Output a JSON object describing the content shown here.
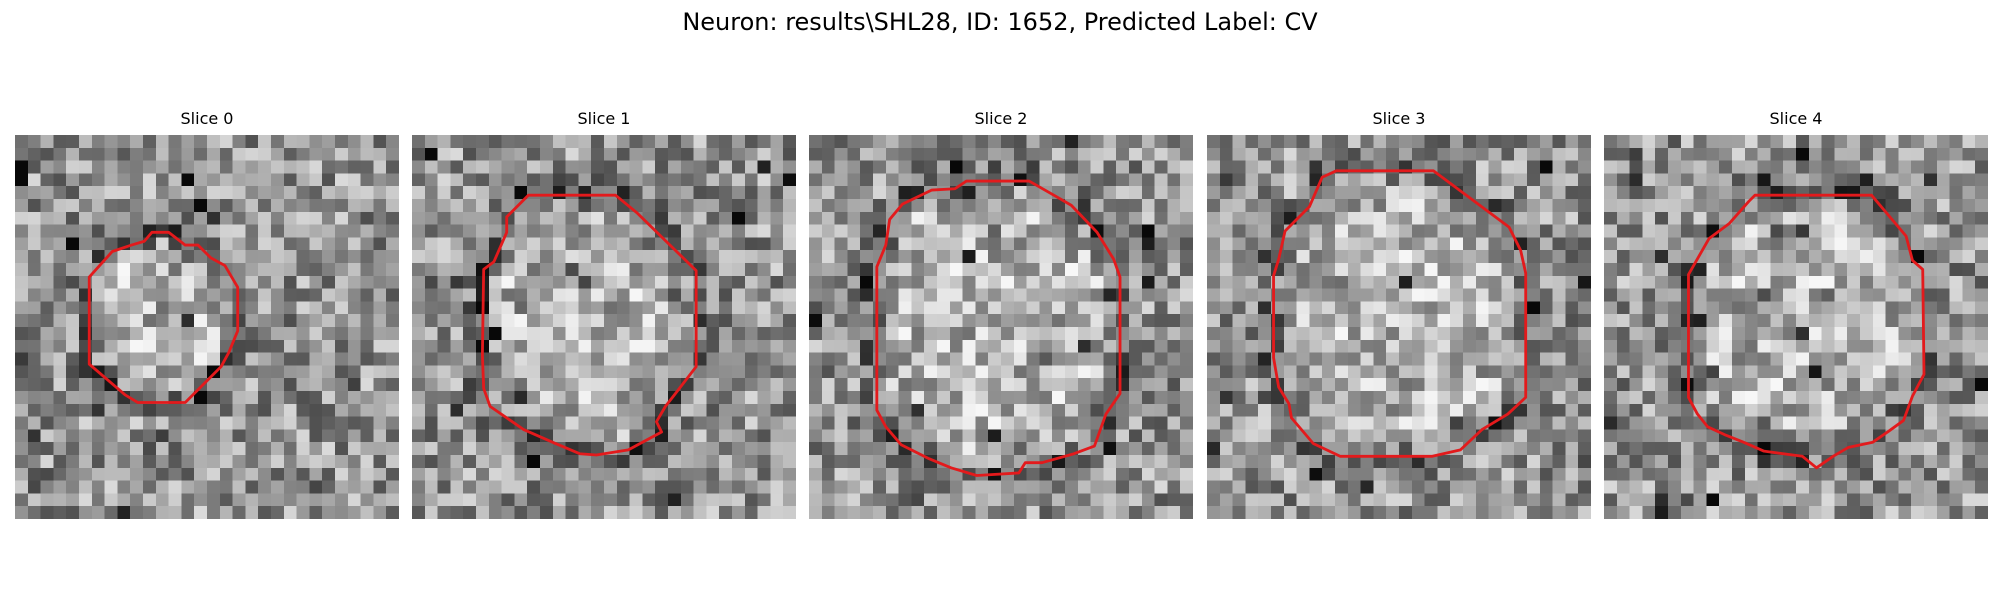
{
  "title": "Neuron: results\\SHL28, ID: 1652, Predicted Label: CV",
  "colors": {
    "contour": "#e31a1c",
    "background": "#ffffff"
  },
  "image_style": "grayscale-noise-patch",
  "grid_resolution": 30,
  "slices": [
    {
      "label": "Slice 0",
      "seed": 11,
      "contour": [
        [
          10.7,
          7.6
        ],
        [
          12.0,
          7.6
        ],
        [
          13.3,
          8.6
        ],
        [
          14.3,
          8.6
        ],
        [
          15.3,
          9.6
        ],
        [
          16.4,
          10.2
        ],
        [
          17.4,
          11.9
        ],
        [
          17.4,
          15.3
        ],
        [
          16.7,
          17.0
        ],
        [
          16.1,
          18.1
        ],
        [
          15.0,
          19.2
        ],
        [
          13.3,
          20.9
        ],
        [
          9.6,
          20.9
        ],
        [
          8.6,
          20.3
        ],
        [
          5.8,
          17.9
        ],
        [
          5.8,
          11.1
        ],
        [
          7.6,
          9.1
        ],
        [
          9.1,
          8.6
        ],
        [
          10.1,
          8.3
        ]
      ]
    },
    {
      "label": "Slice 1",
      "seed": 23,
      "contour": [
        [
          9.1,
          4.7
        ],
        [
          15.9,
          4.7
        ],
        [
          17.6,
          6.1
        ],
        [
          22.2,
          10.6
        ],
        [
          22.2,
          18.1
        ],
        [
          20.5,
          20.3
        ],
        [
          19.8,
          21.2
        ],
        [
          19.1,
          22.4
        ],
        [
          19.5,
          23.2
        ],
        [
          16.9,
          24.6
        ],
        [
          14.4,
          25.0
        ],
        [
          13.1,
          24.9
        ],
        [
          11.2,
          24.1
        ],
        [
          8.7,
          23.0
        ],
        [
          6.1,
          21.2
        ],
        [
          5.6,
          19.8
        ],
        [
          5.5,
          17.2
        ],
        [
          5.6,
          10.5
        ],
        [
          6.4,
          9.9
        ],
        [
          7.4,
          7.6
        ],
        [
          7.4,
          6.4
        ]
      ]
    },
    {
      "label": "Slice 2",
      "seed": 37,
      "contour": [
        [
          12.3,
          3.6
        ],
        [
          17.2,
          3.6
        ],
        [
          19.3,
          4.8
        ],
        [
          20.5,
          5.5
        ],
        [
          22.5,
          7.6
        ],
        [
          23.8,
          9.7
        ],
        [
          24.3,
          11.1
        ],
        [
          24.3,
          20.2
        ],
        [
          23.2,
          21.8
        ],
        [
          22.3,
          24.3
        ],
        [
          20.7,
          24.9
        ],
        [
          18.2,
          25.6
        ],
        [
          16.9,
          25.6
        ],
        [
          16.4,
          26.4
        ],
        [
          13.1,
          26.6
        ],
        [
          11.1,
          26.0
        ],
        [
          9.4,
          25.3
        ],
        [
          7.2,
          24.2
        ],
        [
          6.0,
          22.8
        ],
        [
          5.3,
          21.5
        ],
        [
          5.3,
          10.3
        ],
        [
          6.0,
          8.6
        ],
        [
          6.3,
          6.6
        ],
        [
          7.3,
          5.4
        ],
        [
          9.6,
          4.3
        ],
        [
          11.4,
          4.2
        ]
      ]
    },
    {
      "label": "Slice 3",
      "seed": 53,
      "contour": [
        [
          10.1,
          2.8
        ],
        [
          17.7,
          2.8
        ],
        [
          23.6,
          7.2
        ],
        [
          24.5,
          9.0
        ],
        [
          24.9,
          10.8
        ],
        [
          24.9,
          20.5
        ],
        [
          23.5,
          21.8
        ],
        [
          21.5,
          23.0
        ],
        [
          19.8,
          24.6
        ],
        [
          17.6,
          25.1
        ],
        [
          10.4,
          25.1
        ],
        [
          8.3,
          24.1
        ],
        [
          6.6,
          22.1
        ],
        [
          6.4,
          21.0
        ],
        [
          5.6,
          19.7
        ],
        [
          5.2,
          17.4
        ],
        [
          5.2,
          11.0
        ],
        [
          5.6,
          9.7
        ],
        [
          6.1,
          7.5
        ],
        [
          8.0,
          5.6
        ],
        [
          9.0,
          3.3
        ]
      ]
    },
    {
      "label": "Slice 4",
      "seed": 71,
      "contour": [
        [
          11.8,
          4.7
        ],
        [
          20.9,
          4.7
        ],
        [
          23.6,
          7.9
        ],
        [
          24.1,
          9.8
        ],
        [
          24.9,
          10.5
        ],
        [
          25.0,
          18.7
        ],
        [
          24.1,
          20.4
        ],
        [
          23.4,
          22.3
        ],
        [
          22.3,
          23.1
        ],
        [
          21.0,
          24.0
        ],
        [
          19.1,
          24.4
        ],
        [
          17.9,
          25.1
        ],
        [
          16.6,
          26.0
        ],
        [
          15.5,
          25.1
        ],
        [
          12.5,
          24.7
        ],
        [
          10.9,
          24.0
        ],
        [
          9.4,
          23.4
        ],
        [
          8.1,
          22.8
        ],
        [
          7.3,
          21.8
        ],
        [
          6.6,
          20.5
        ],
        [
          6.6,
          10.9
        ],
        [
          8.2,
          8.1
        ],
        [
          9.8,
          6.9
        ],
        [
          11.3,
          5.2
        ]
      ]
    }
  ]
}
